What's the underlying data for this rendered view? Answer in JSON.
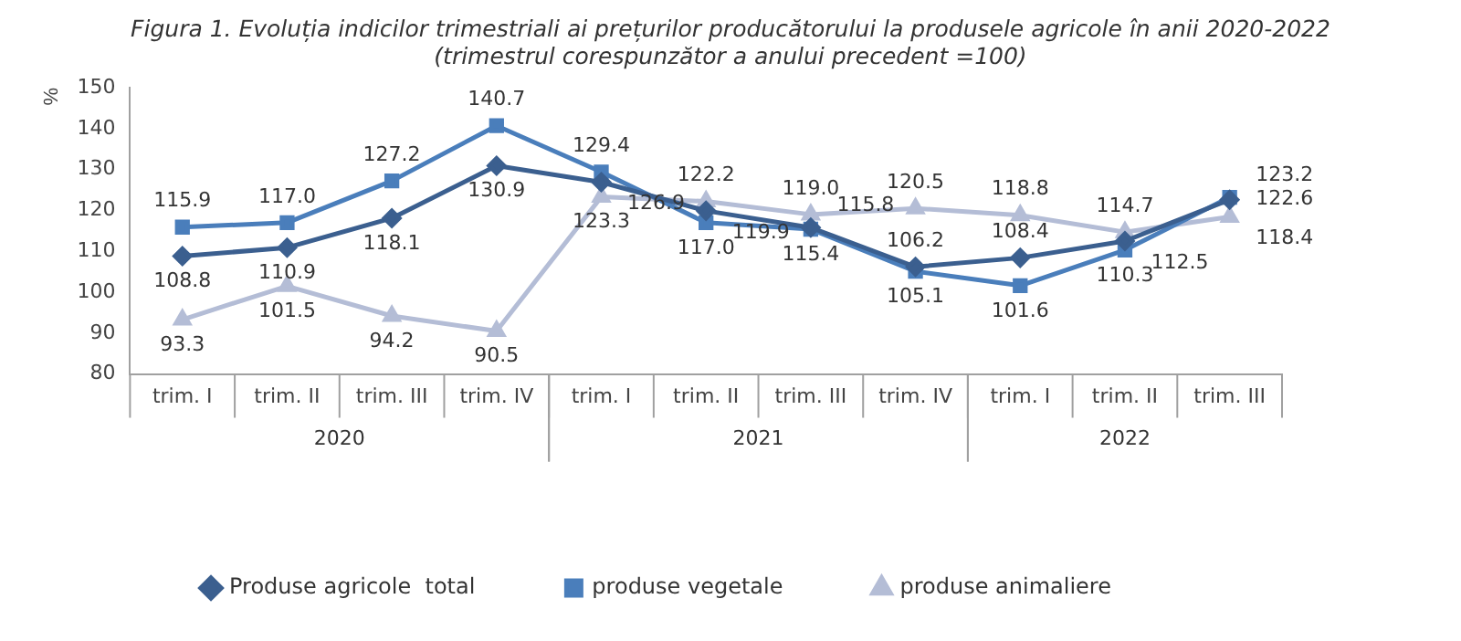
{
  "chart_data": {
    "type": "line",
    "title": "Figura 1. Evoluția indicilor trimestriali ai prețurilor producătorului la produsele agricole în anii 2020-2022",
    "subtitle": "(trimestrul corespunzător a anului precedent =100)",
    "ylabel": "%",
    "categories": [
      "trim. I",
      "trim. II",
      "trim. III",
      "trim. IV",
      "trim. I",
      "trim. II",
      "trim. III",
      "trim. IV",
      "trim. I",
      "trim. II",
      "trim. III"
    ],
    "annotations": [
      "2020",
      "2021",
      "2022"
    ],
    "series": [
      {
        "name": "Produse agricole  total",
        "color": "#3b5f8f",
        "marker": "diamond",
        "values": [
          108.8,
          110.9,
          118.1,
          130.9,
          126.9,
          119.9,
          115.8,
          106.2,
          108.4,
          112.5,
          122.6
        ],
        "value_labels": [
          "108.8",
          "110.9",
          "118.1",
          "130.9",
          "126.9",
          "119.9",
          "115.8",
          "106.2",
          "108.4",
          "112.5",
          "122.6"
        ]
      },
      {
        "name": "produse vegetale",
        "color": "#4a7ebb",
        "marker": "square",
        "values": [
          115.9,
          117.0,
          127.2,
          140.7,
          129.4,
          117.0,
          115.4,
          105.1,
          101.6,
          110.3,
          123.2
        ],
        "value_labels": [
          "115.9",
          "117.0",
          "127.2",
          "140.7",
          "129.4",
          "117.0",
          "115.4",
          "105.1",
          "101.6",
          "110.3",
          "123.2"
        ]
      },
      {
        "name": "produse animaliere",
        "color": "#b4bdd6",
        "marker": "triangle",
        "values": [
          93.3,
          101.5,
          94.2,
          90.5,
          123.3,
          122.2,
          119.0,
          120.5,
          118.8,
          114.7,
          118.4
        ],
        "value_labels": [
          "93.3",
          "101.5",
          "94.2",
          "90.5",
          "123.3",
          "122.2",
          "119.0",
          "120.5",
          "118.8",
          "114.7",
          "118.4"
        ]
      }
    ],
    "ylim": [
      80,
      150
    ],
    "yticks": [
      80,
      90,
      100,
      110,
      120,
      130,
      140,
      150
    ],
    "grid": false,
    "legend": "bottom"
  }
}
